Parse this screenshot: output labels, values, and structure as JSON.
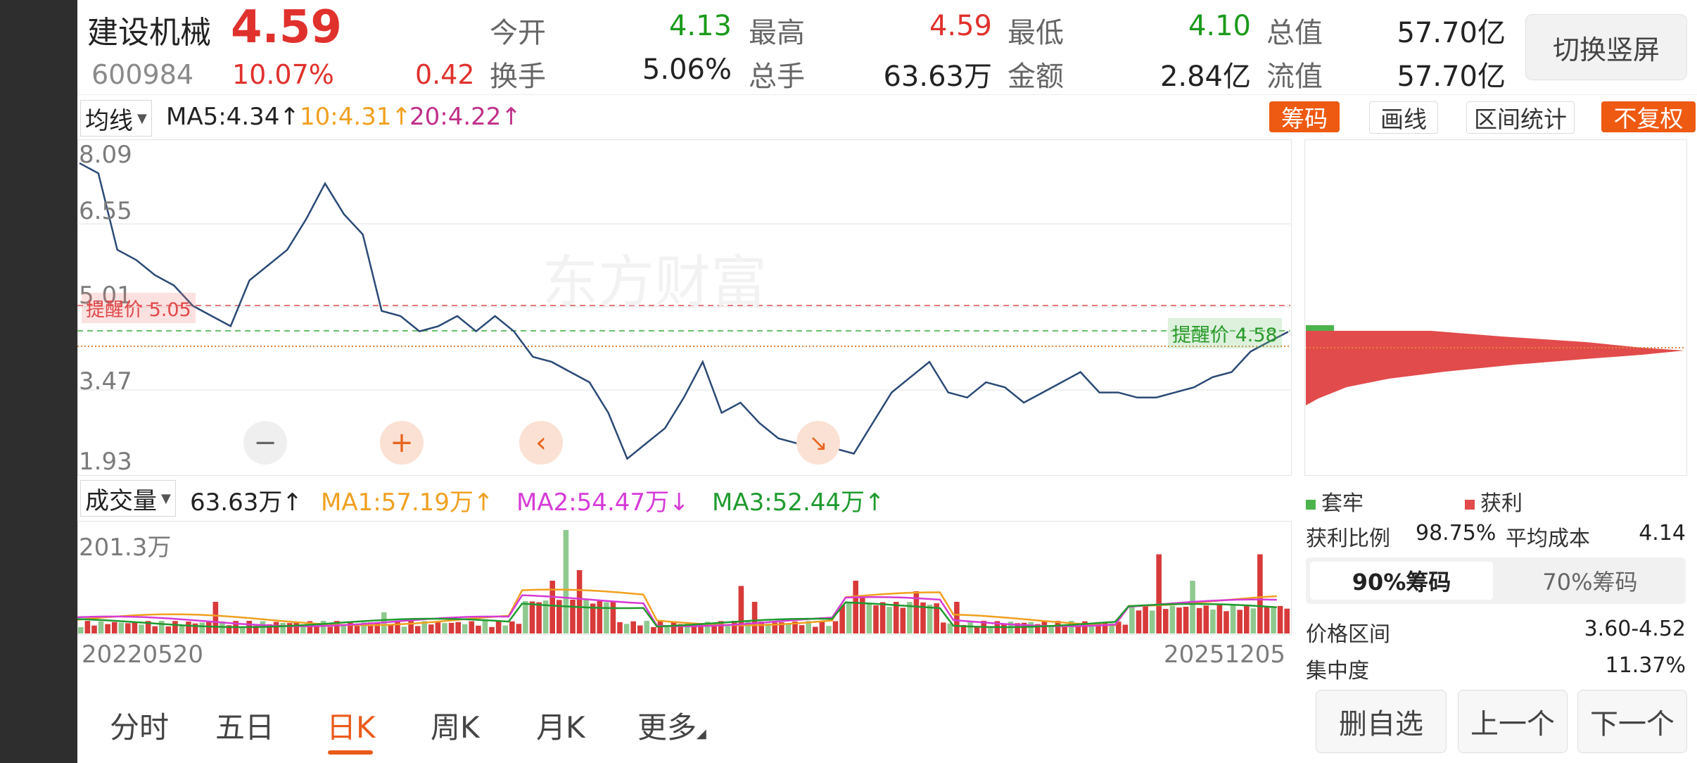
{
  "stock": {
    "name": "建设机械",
    "price": "4.59",
    "code": "600984",
    "change_pct": "10.07%",
    "change": "0.42"
  },
  "quote": {
    "open_label": "今开",
    "open": "4.13",
    "high_label": "最高",
    "high": "4.59",
    "low_label": "最低",
    "low": "4.10",
    "mcap_label": "总值",
    "mcap": "57.70亿",
    "turnover_label": "换手",
    "turnover": "5.06%",
    "volume_label": "总手",
    "volume": "63.63万",
    "amount_label": "金额",
    "amount": "2.84亿",
    "float_label": "流值",
    "float": "57.70亿"
  },
  "switch_button": "切换竖屏",
  "ma_bar": {
    "dropdown": "均线",
    "ma5": "MA5:4.34↑",
    "ma10": "10:4.31↑",
    "ma20": "20:4.22↑"
  },
  "tools": {
    "chips": "筹码",
    "draw": "画线",
    "interval": "区间统计",
    "adjust": "不复权"
  },
  "price_axis": [
    "8.09",
    "6.55",
    "5.01",
    "3.47",
    "1.93"
  ],
  "alerts": {
    "red": "提醒价 5.05",
    "green": "提醒价 4.58"
  },
  "controls": {
    "zoom_out": "−",
    "zoom_in": "+",
    "back": "‹",
    "fit": "↘"
  },
  "volume_bar": {
    "dropdown": "成交量",
    "value": "63.63万↑",
    "ma1": "MA1:57.19万↑",
    "ma2": "MA2:54.47万↓",
    "ma3": "MA3:52.44万↑",
    "max": "201.3万"
  },
  "dates": {
    "start": "20220520",
    "end": "20251205"
  },
  "chip_panel": {
    "legend_trapped": "套牢",
    "legend_profit": "获利",
    "profit_ratio_label": "获利比例",
    "profit_ratio": "98.75%",
    "avg_cost_label": "平均成本",
    "avg_cost": "4.14",
    "seg_90": "90%筹码",
    "seg_70": "70%筹码",
    "range_label": "价格区间",
    "range": "3.60-4.52",
    "conc_label": "集中度",
    "conc": "11.37%"
  },
  "tabs": [
    "分时",
    "五日",
    "日K",
    "周K",
    "月K",
    "更多"
  ],
  "bottom_buttons": {
    "remove": "删自选",
    "prev": "上一个",
    "next": "下一个"
  },
  "colors": {
    "up": "#e0312d",
    "down": "#1b9a1b",
    "accent": "#ea5b1c",
    "line": "#2b4a75",
    "ma1": "#f0a020",
    "ma2": "#d63bd6",
    "ma3": "#1f9a2f"
  },
  "chart_data": {
    "type": "line",
    "x_range": [
      "20220520",
      "20251205"
    ],
    "ylim": [
      1.93,
      8.09
    ],
    "y_ticks": [
      8.09,
      6.55,
      5.01,
      3.47,
      1.93
    ],
    "close": [
      7.9,
      7.7,
      6.2,
      6.0,
      5.7,
      5.5,
      5.1,
      4.9,
      4.7,
      5.6,
      5.9,
      6.2,
      6.8,
      7.5,
      6.9,
      6.5,
      5.0,
      4.9,
      4.6,
      4.7,
      4.9,
      4.6,
      4.9,
      4.6,
      4.1,
      4.0,
      3.8,
      3.6,
      3.0,
      2.1,
      2.4,
      2.7,
      3.3,
      4.0,
      3.0,
      3.2,
      2.8,
      2.5,
      2.4,
      2.5,
      2.3,
      2.2,
      2.8,
      3.4,
      3.7,
      4.0,
      3.4,
      3.3,
      3.6,
      3.5,
      3.2,
      3.4,
      3.6,
      3.8,
      3.4,
      3.4,
      3.3,
      3.3,
      3.4,
      3.5,
      3.7,
      3.8,
      4.2,
      4.4,
      4.59
    ],
    "volume_max": "201.3万"
  }
}
